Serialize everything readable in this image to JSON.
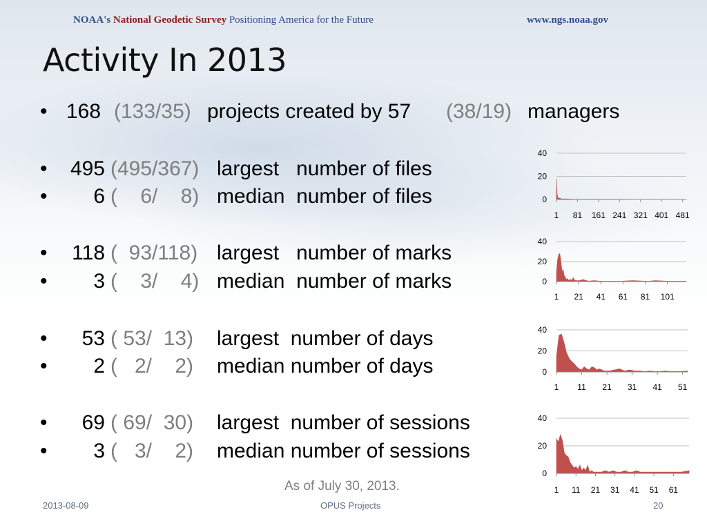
{
  "header": {
    "org_prefix": "NOAA's ",
    "org_name": "National Geodetic Survey",
    "tagline": " Positioning America for the Future",
    "url": "www.ngs.noaa.gov"
  },
  "title": "Activity In 2013",
  "bullet": "•",
  "line1": {
    "count": "168",
    "split": "(133/35)",
    "text_a": "projects created by 57",
    "split2": "(38/19)",
    "text_b": "managers"
  },
  "stats": [
    {
      "num": "495",
      "paren": "(495/367)",
      "label": "largest   number of files"
    },
    {
      "num": "6",
      "paren": "(    6/    8)",
      "label": "median  number of files"
    },
    {
      "num": "118",
      "paren": "(  93/118)",
      "label": "largest   number of marks"
    },
    {
      "num": "3",
      "paren": "(    3/    4)",
      "label": "median  number of marks"
    },
    {
      "num": "53",
      "paren": "( 53/  13)",
      "label": "largest  number of days"
    },
    {
      "num": "2",
      "paren": "(   2/    2)",
      "label": "median number of days"
    },
    {
      "num": "69",
      "paren": "( 69/  30)",
      "label": "largest  number of sessions"
    },
    {
      "num": "3",
      "paren": "(   3/    2)",
      "label": "median number of sessions"
    }
  ],
  "note": "As of July 30, 2013.",
  "footer": {
    "date": "2013-08-09",
    "center": "OPUS Projects",
    "page": "20"
  },
  "colors": {
    "bar": "#c0504d",
    "grid": "#bfbfbf",
    "title_blue": "#2f4f86",
    "accent_red": "#8b1f1f"
  },
  "chart_data": [
    {
      "type": "area",
      "ylim": [
        0,
        40
      ],
      "yticks": [
        0,
        20,
        40
      ],
      "xlim": [
        1,
        495
      ],
      "xticks": [
        "1",
        "81",
        "161",
        "241",
        "321",
        "401",
        "481"
      ],
      "tick_values": [
        1,
        81,
        161,
        241,
        321,
        401,
        481
      ],
      "x": [
        1,
        2,
        3,
        4,
        5,
        6,
        8,
        10,
        15,
        20,
        30,
        40,
        60,
        100,
        200,
        300,
        400,
        495
      ],
      "values": [
        18,
        12,
        6,
        4,
        3,
        2,
        1.5,
        1,
        1,
        0.5,
        0.5,
        0.5,
        0.3,
        0.2,
        0.2,
        0.1,
        0.1,
        0.1
      ]
    },
    {
      "type": "area",
      "ylim": [
        0,
        40
      ],
      "yticks": [
        0,
        20,
        40
      ],
      "xlim": [
        1,
        118
      ],
      "xticks": [
        "1",
        "21",
        "41",
        "61",
        "81",
        "101"
      ],
      "tick_values": [
        1,
        21,
        41,
        61,
        81,
        101
      ],
      "x": [
        1,
        2,
        3,
        4,
        5,
        6,
        7,
        8,
        9,
        10,
        11,
        12,
        13,
        14,
        15,
        16,
        17,
        18,
        20,
        22,
        25,
        28,
        30,
        35,
        40,
        50,
        60,
        70,
        80,
        85,
        90,
        100,
        110,
        118
      ],
      "values": [
        10,
        22,
        27,
        28,
        20,
        10,
        12,
        6,
        4,
        2,
        3,
        1,
        2,
        2,
        1,
        4,
        2,
        1,
        1,
        1,
        2,
        1,
        0.5,
        1,
        0.5,
        0.5,
        0.5,
        1,
        0.5,
        0.5,
        1,
        0.5,
        0.5,
        0.5
      ]
    },
    {
      "type": "area",
      "ylim": [
        0,
        40
      ],
      "yticks": [
        0,
        20,
        40
      ],
      "xlim": [
        1,
        53
      ],
      "xticks": [
        "1",
        "11",
        "21",
        "31",
        "41",
        "51"
      ],
      "tick_values": [
        1,
        11,
        21,
        31,
        41,
        51
      ],
      "x": [
        1,
        2,
        3,
        4,
        5,
        6,
        7,
        8,
        9,
        10,
        11,
        12,
        13,
        14,
        15,
        16,
        17,
        18,
        19,
        20,
        22,
        24,
        26,
        28,
        30,
        32,
        34,
        36,
        38,
        40,
        42,
        44,
        46,
        48,
        50,
        53
      ],
      "values": [
        15,
        35,
        36,
        28,
        18,
        13,
        10,
        8,
        5,
        3,
        2,
        5,
        3,
        2,
        5,
        4,
        2,
        3,
        2,
        1,
        1,
        2,
        3,
        1,
        2,
        1,
        1,
        0.5,
        1,
        0.5,
        0.5,
        1,
        0.5,
        0.5,
        0.5,
        1
      ]
    },
    {
      "type": "area",
      "ylim": [
        0,
        40
      ],
      "yticks": [
        0,
        20,
        40
      ],
      "xlim": [
        1,
        69
      ],
      "xticks": [
        "1",
        "11",
        "21",
        "31",
        "41",
        "51",
        "61"
      ],
      "tick_values": [
        1,
        11,
        21,
        31,
        41,
        51,
        61
      ],
      "x": [
        1,
        2,
        3,
        4,
        5,
        6,
        7,
        8,
        9,
        10,
        11,
        12,
        13,
        14,
        15,
        16,
        17,
        18,
        19,
        20,
        22,
        24,
        26,
        28,
        30,
        32,
        34,
        36,
        38,
        40,
        42,
        44,
        46,
        50,
        55,
        60,
        65,
        69
      ],
      "values": [
        25,
        23,
        28,
        24,
        15,
        13,
        12,
        8,
        6,
        4,
        5,
        3,
        6,
        2,
        4,
        2,
        6,
        1,
        2,
        1,
        1,
        1,
        2,
        1,
        2,
        1,
        1,
        2,
        1,
        1,
        2,
        1,
        1,
        1,
        1,
        1,
        1,
        2
      ]
    }
  ]
}
